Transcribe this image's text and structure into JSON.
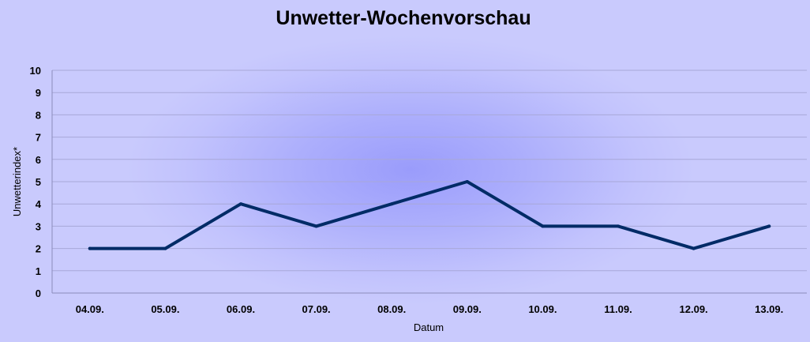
{
  "chart_data": {
    "type": "line",
    "title": "Unwetter-Wochenvorschau",
    "xlabel": "Datum",
    "ylabel": "Unwetterindex*",
    "categories": [
      "04.09.",
      "05.09.",
      "06.09.",
      "07.09.",
      "08.09.",
      "09.09.",
      "10.09.",
      "11.09.",
      "12.09.",
      "13.09."
    ],
    "series": [
      {
        "values": [
          2,
          2,
          4,
          3,
          4,
          5,
          3,
          3,
          2,
          3
        ]
      }
    ],
    "ylim": [
      0,
      10
    ],
    "yticks": [
      0,
      1,
      2,
      3,
      4,
      5,
      6,
      7,
      8,
      9,
      10
    ],
    "grid": true,
    "legend": "none",
    "colors": {
      "line": "#002b66",
      "background_center": "#9a9cfb",
      "background_edge": "#c9cafd",
      "grid": "#a8a8d8"
    }
  }
}
